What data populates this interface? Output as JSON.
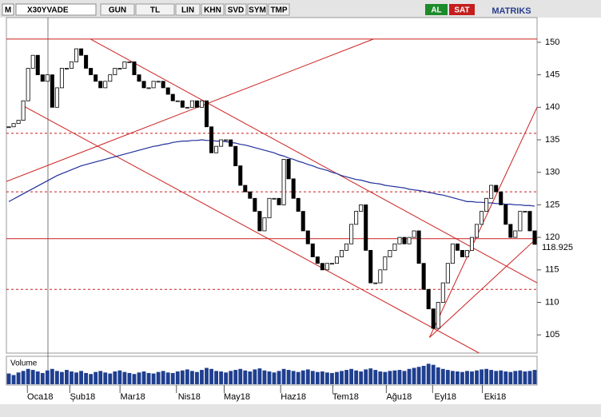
{
  "toolbar": {
    "logo": "M",
    "symbol": "X30YVADE",
    "buttons": [
      "GUN",
      "TL",
      "LIN",
      "KHN",
      "SVD",
      "SYM",
      "TMP"
    ],
    "buy": "AL",
    "sell": "SAT",
    "brand": "MATRIKS"
  },
  "chart_data": {
    "type": "candlestick",
    "ylim": [
      102.2,
      153.8
    ],
    "yticks": [
      105,
      110,
      115,
      120,
      125,
      130,
      135,
      140,
      145,
      150
    ],
    "xticks": [
      {
        "value": 6.5,
        "label": "Oca18"
      },
      {
        "value": 15.3,
        "label": "Şub18"
      },
      {
        "value": 25.7,
        "label": "Mar18"
      },
      {
        "value": 37.4,
        "label": "Nis18"
      },
      {
        "value": 47.3,
        "label": "May18"
      },
      {
        "value": 59,
        "label": "Haz18"
      },
      {
        "value": 69.8,
        "label": "Tem18"
      },
      {
        "value": 80.9,
        "label": "Ağu18"
      },
      {
        "value": 90.5,
        "label": "Eyl18"
      },
      {
        "value": 100.8,
        "label": "Eki18"
      }
    ],
    "last_price_label": "118.925",
    "series": [
      {
        "color": "#000000",
        "values": [
          137,
          137.5,
          138,
          141,
          146,
          148,
          145,
          144,
          145,
          140,
          143,
          146,
          146,
          147,
          149,
          148,
          146,
          145,
          144,
          143,
          144,
          145,
          146,
          146,
          147,
          147,
          145,
          144,
          143,
          143,
          144,
          144,
          143,
          142,
          141,
          141,
          140,
          140,
          141,
          140,
          141,
          137,
          133,
          134,
          135,
          135,
          134,
          131,
          128,
          127,
          126,
          124,
          121,
          123,
          126,
          126,
          125,
          132,
          129,
          126,
          124,
          121,
          119,
          117,
          116,
          115,
          116,
          116,
          117,
          118,
          119,
          122,
          124,
          125,
          118,
          113,
          113,
          115,
          117,
          118,
          119,
          120,
          119,
          120,
          121,
          116,
          112,
          109,
          106,
          110,
          113,
          116,
          119,
          118,
          117,
          118,
          120,
          122,
          124,
          126,
          128,
          127,
          125,
          122,
          120,
          121,
          124,
          124,
          121,
          118.925
        ]
      },
      {
        "color": "#1f2f9a",
        "values": [
          125.5,
          125.9,
          126.3,
          126.7,
          127.1,
          127.5,
          127.9,
          128.3,
          128.7,
          129.1,
          129.5,
          129.8,
          130.1,
          130.4,
          130.7,
          131,
          131.2,
          131.4,
          131.6,
          131.8,
          132,
          132.2,
          132.4,
          132.6,
          132.8,
          133,
          133.2,
          133.4,
          133.6,
          133.8,
          134,
          134.1,
          134.3,
          134.4,
          134.6,
          134.7,
          134.8,
          134.8,
          134.9,
          134.9,
          135,
          134.9,
          134.9,
          134.8,
          134.8,
          134.7,
          134.6,
          134.5,
          134.3,
          134.2,
          134,
          133.8,
          133.6,
          133.4,
          133.2,
          133,
          132.7,
          132.5,
          132.2,
          132,
          131.7,
          131.5,
          131.2,
          131,
          130.7,
          130.5,
          130.3,
          130,
          129.8,
          129.5,
          129.3,
          129.1,
          128.9,
          128.8,
          128.6,
          128.4,
          128.3,
          128.2,
          128,
          127.9,
          127.8,
          127.7,
          127.6,
          127.4,
          127.3,
          127.2,
          127.1,
          126.9,
          126.8,
          126.6,
          126.5,
          126.3,
          126.1,
          125.9,
          125.7,
          125.5,
          125.5,
          125.4,
          125.4,
          125.3,
          125.3,
          125.2,
          125.2,
          125.1,
          125.1,
          125,
          125,
          124.9,
          124.9,
          124.8
        ]
      }
    ],
    "levels": [
      {
        "value": 150.5,
        "style": "solid"
      },
      {
        "value": 119.8,
        "style": "solid"
      },
      {
        "value": 136,
        "style": "dashed"
      },
      {
        "value": 127,
        "style": "dashed"
      },
      {
        "value": 112,
        "style": "dashed"
      }
    ],
    "trendlines": [
      {
        "x": [
          16.9,
          109.5
        ],
        "y": [
          150.5,
          113
        ]
      },
      {
        "x": [
          2.8,
          97.5
        ],
        "y": [
          140.3,
          102.2
        ]
      },
      {
        "x": [
          -0.5,
          75.6
        ],
        "y": [
          128.6,
          150.5
        ]
      },
      {
        "x": [
          87.2,
          109.5
        ],
        "y": [
          104.6,
          140
        ]
      },
      {
        "x": [
          87.2,
          109.5
        ],
        "y": [
          104.6,
          119.9
        ]
      }
    ],
    "level_color": "#cc1f1f",
    "volume": {
      "title": "Volume",
      "color": "#1f3f8f",
      "ylim": [
        0,
        500000
      ],
      "values": [
        210000,
        180000,
        230000,
        260000,
        300000,
        280000,
        250000,
        220000,
        270000,
        300000,
        260000,
        240000,
        280000,
        250000,
        230000,
        260000,
        220000,
        200000,
        240000,
        260000,
        230000,
        210000,
        250000,
        270000,
        240000,
        220000,
        200000,
        230000,
        250000,
        220000,
        210000,
        240000,
        260000,
        230000,
        220000,
        250000,
        270000,
        290000,
        260000,
        240000,
        280000,
        320000,
        300000,
        260000,
        250000,
        230000,
        260000,
        280000,
        300000,
        270000,
        250000,
        290000,
        310000,
        270000,
        250000,
        230000,
        260000,
        300000,
        280000,
        260000,
        240000,
        270000,
        290000,
        260000,
        240000,
        250000,
        230000,
        220000,
        240000,
        260000,
        280000,
        300000,
        270000,
        250000,
        290000,
        310000,
        280000,
        250000,
        240000,
        260000,
        270000,
        280000,
        260000,
        300000,
        320000,
        340000,
        360000,
        400000,
        380000,
        330000,
        300000,
        280000,
        260000,
        250000,
        240000,
        260000,
        250000,
        270000,
        290000,
        300000,
        280000,
        260000,
        270000,
        250000,
        240000,
        260000,
        270000,
        250000,
        260000,
        280000
      ]
    }
  }
}
